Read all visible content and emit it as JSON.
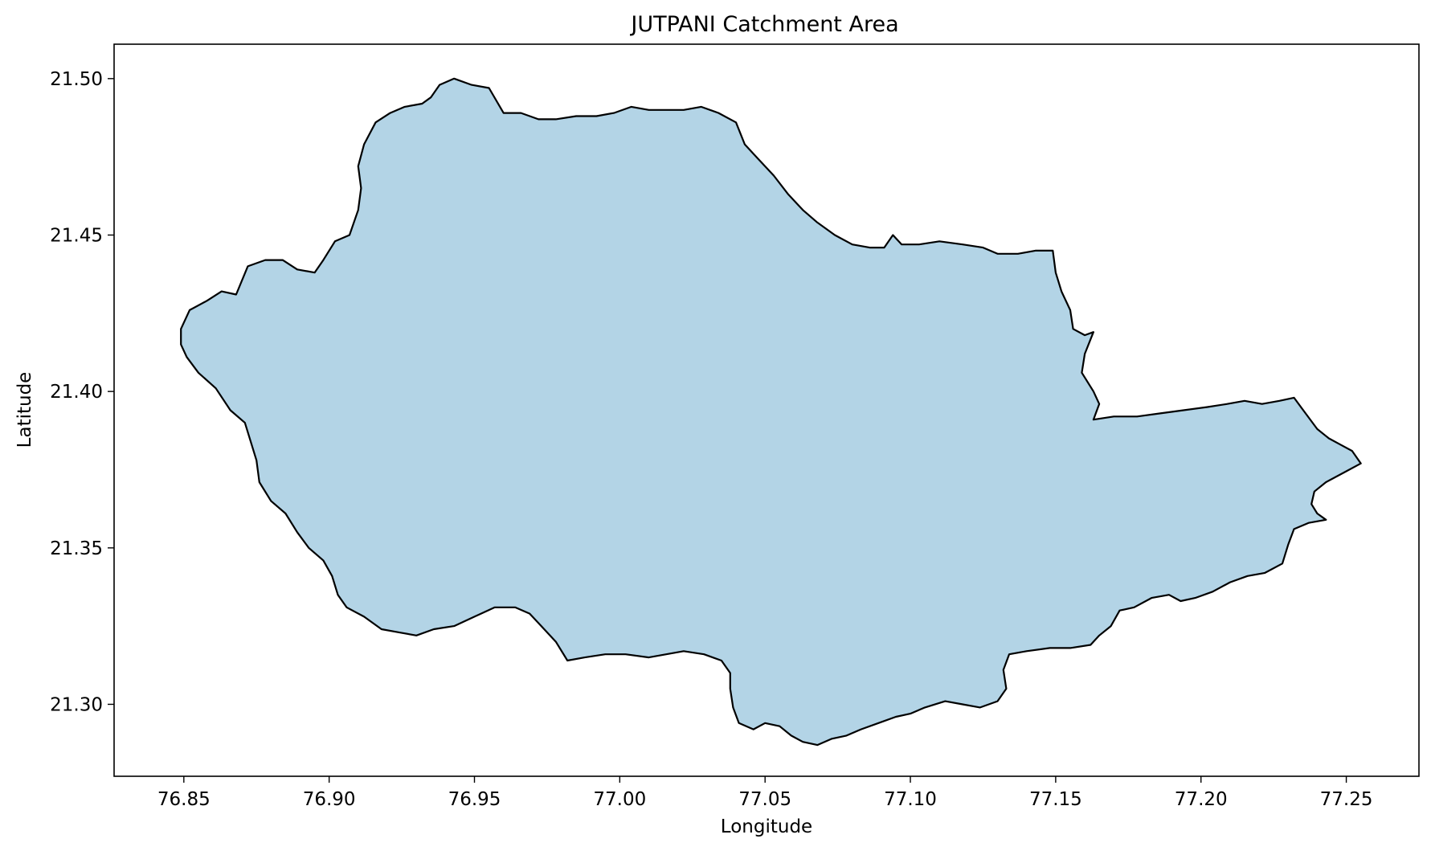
{
  "chart_data": {
    "type": "area",
    "title": "JUTPANI Catchment Area",
    "xlabel": "Longitude",
    "ylabel": "Latitude",
    "xlim": [
      76.826,
      77.275
    ],
    "ylim": [
      21.277,
      21.511
    ],
    "xticks": [
      76.85,
      76.9,
      76.95,
      77.0,
      77.05,
      77.1,
      77.15,
      77.2,
      77.25
    ],
    "yticks": [
      21.3,
      21.35,
      21.4,
      21.45,
      21.5
    ],
    "x_tick_labels": [
      "76.85",
      "76.90",
      "76.95",
      "77.00",
      "77.05",
      "77.10",
      "77.15",
      "77.20",
      "77.25"
    ],
    "y_tick_labels": [
      "21.30",
      "21.35",
      "21.40",
      "21.45",
      "21.50"
    ],
    "grid": false,
    "fill_color": "#b3d4e6",
    "edge_color": "#000000",
    "boundary": [
      [
        76.849,
        21.42
      ],
      [
        76.852,
        21.426
      ],
      [
        76.858,
        21.429
      ],
      [
        76.863,
        21.432
      ],
      [
        76.868,
        21.431
      ],
      [
        76.872,
        21.44
      ],
      [
        76.878,
        21.442
      ],
      [
        76.884,
        21.442
      ],
      [
        76.889,
        21.439
      ],
      [
        76.895,
        21.438
      ],
      [
        76.898,
        21.442
      ],
      [
        76.902,
        21.448
      ],
      [
        76.907,
        21.45
      ],
      [
        76.91,
        21.458
      ],
      [
        76.911,
        21.465
      ],
      [
        76.91,
        21.472
      ],
      [
        76.912,
        21.479
      ],
      [
        76.916,
        21.486
      ],
      [
        76.921,
        21.489
      ],
      [
        76.926,
        21.491
      ],
      [
        76.932,
        21.492
      ],
      [
        76.935,
        21.494
      ],
      [
        76.938,
        21.498
      ],
      [
        76.943,
        21.5
      ],
      [
        76.949,
        21.498
      ],
      [
        76.955,
        21.497
      ],
      [
        76.96,
        21.489
      ],
      [
        76.966,
        21.489
      ],
      [
        76.972,
        21.487
      ],
      [
        76.978,
        21.487
      ],
      [
        76.985,
        21.488
      ],
      [
        76.992,
        21.488
      ],
      [
        76.998,
        21.489
      ],
      [
        77.004,
        21.491
      ],
      [
        77.01,
        21.49
      ],
      [
        77.016,
        21.49
      ],
      [
        77.022,
        21.49
      ],
      [
        77.028,
        21.491
      ],
      [
        77.034,
        21.489
      ],
      [
        77.04,
        21.486
      ],
      [
        77.043,
        21.479
      ],
      [
        77.047,
        21.475
      ],
      [
        77.053,
        21.469
      ],
      [
        77.058,
        21.463
      ],
      [
        77.063,
        21.458
      ],
      [
        77.068,
        21.454
      ],
      [
        77.074,
        21.45
      ],
      [
        77.08,
        21.447
      ],
      [
        77.086,
        21.446
      ],
      [
        77.091,
        21.446
      ],
      [
        77.094,
        21.45
      ],
      [
        77.097,
        21.447
      ],
      [
        77.103,
        21.447
      ],
      [
        77.11,
        21.448
      ],
      [
        77.118,
        21.447
      ],
      [
        77.125,
        21.446
      ],
      [
        77.13,
        21.444
      ],
      [
        77.137,
        21.444
      ],
      [
        77.143,
        21.445
      ],
      [
        77.149,
        21.445
      ],
      [
        77.15,
        21.438
      ],
      [
        77.152,
        21.432
      ],
      [
        77.155,
        21.426
      ],
      [
        77.156,
        21.42
      ],
      [
        77.16,
        21.418
      ],
      [
        77.163,
        21.419
      ],
      [
        77.16,
        21.412
      ],
      [
        77.159,
        21.406
      ],
      [
        77.163,
        21.4
      ],
      [
        77.165,
        21.396
      ],
      [
        77.163,
        21.391
      ],
      [
        77.17,
        21.392
      ],
      [
        77.178,
        21.392
      ],
      [
        77.186,
        21.393
      ],
      [
        77.194,
        21.394
      ],
      [
        77.202,
        21.395
      ],
      [
        77.209,
        21.396
      ],
      [
        77.215,
        21.397
      ],
      [
        77.221,
        21.396
      ],
      [
        77.227,
        21.397
      ],
      [
        77.232,
        21.398
      ],
      [
        77.236,
        21.393
      ],
      [
        77.24,
        21.388
      ],
      [
        77.244,
        21.385
      ],
      [
        77.248,
        21.383
      ],
      [
        77.252,
        21.381
      ],
      [
        77.255,
        21.377
      ],
      [
        77.249,
        21.374
      ],
      [
        77.243,
        21.371
      ],
      [
        77.239,
        21.368
      ],
      [
        77.238,
        21.364
      ],
      [
        77.24,
        21.361
      ],
      [
        77.243,
        21.359
      ],
      [
        77.237,
        21.358
      ],
      [
        77.232,
        21.356
      ],
      [
        77.23,
        21.351
      ],
      [
        77.228,
        21.345
      ],
      [
        77.222,
        21.342
      ],
      [
        77.216,
        21.341
      ],
      [
        77.21,
        21.339
      ],
      [
        77.204,
        21.336
      ],
      [
        77.198,
        21.334
      ],
      [
        77.193,
        21.333
      ],
      [
        77.189,
        21.335
      ],
      [
        77.183,
        21.334
      ],
      [
        77.177,
        21.331
      ],
      [
        77.172,
        21.33
      ],
      [
        77.169,
        21.325
      ],
      [
        77.165,
        21.322
      ],
      [
        77.162,
        21.319
      ],
      [
        77.155,
        21.318
      ],
      [
        77.148,
        21.318
      ],
      [
        77.14,
        21.317
      ],
      [
        77.134,
        21.316
      ],
      [
        77.132,
        21.311
      ],
      [
        77.133,
        21.305
      ],
      [
        77.13,
        21.301
      ],
      [
        77.124,
        21.299
      ],
      [
        77.118,
        21.3
      ],
      [
        77.112,
        21.301
      ],
      [
        77.105,
        21.299
      ],
      [
        77.1,
        21.297
      ],
      [
        77.095,
        21.296
      ],
      [
        77.089,
        21.294
      ],
      [
        77.083,
        21.292
      ],
      [
        77.078,
        21.29
      ],
      [
        77.073,
        21.289
      ],
      [
        77.068,
        21.287
      ],
      [
        77.063,
        21.288
      ],
      [
        77.059,
        21.29
      ],
      [
        77.055,
        21.293
      ],
      [
        77.05,
        21.294
      ],
      [
        77.046,
        21.292
      ],
      [
        77.041,
        21.294
      ],
      [
        77.039,
        21.299
      ],
      [
        77.038,
        21.305
      ],
      [
        77.038,
        21.31
      ],
      [
        77.035,
        21.314
      ],
      [
        77.029,
        21.316
      ],
      [
        77.022,
        21.317
      ],
      [
        77.016,
        21.316
      ],
      [
        77.01,
        21.315
      ],
      [
        77.002,
        21.316
      ],
      [
        76.995,
        21.316
      ],
      [
        76.988,
        21.315
      ],
      [
        76.982,
        21.314
      ],
      [
        76.978,
        21.32
      ],
      [
        76.973,
        21.325
      ],
      [
        76.969,
        21.329
      ],
      [
        76.964,
        21.331
      ],
      [
        76.957,
        21.331
      ],
      [
        76.95,
        21.328
      ],
      [
        76.943,
        21.325
      ],
      [
        76.936,
        21.324
      ],
      [
        76.93,
        21.322
      ],
      [
        76.924,
        21.323
      ],
      [
        76.918,
        21.324
      ],
      [
        76.912,
        21.328
      ],
      [
        76.906,
        21.331
      ],
      [
        76.903,
        21.335
      ],
      [
        76.901,
        21.341
      ],
      [
        76.898,
        21.346
      ],
      [
        76.893,
        21.35
      ],
      [
        76.889,
        21.355
      ],
      [
        76.885,
        21.361
      ],
      [
        76.88,
        21.365
      ],
      [
        76.876,
        21.371
      ],
      [
        76.875,
        21.378
      ],
      [
        76.873,
        21.384
      ],
      [
        76.871,
        21.39
      ],
      [
        76.866,
        21.394
      ],
      [
        76.861,
        21.401
      ],
      [
        76.855,
        21.406
      ],
      [
        76.851,
        21.411
      ],
      [
        76.849,
        21.415
      ]
    ]
  }
}
